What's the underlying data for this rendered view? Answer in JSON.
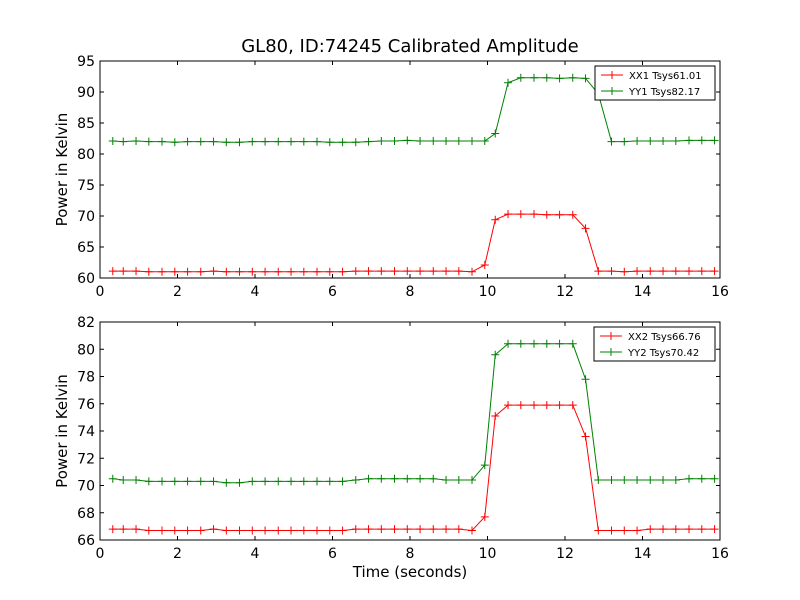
{
  "chart_data": [
    {
      "type": "line",
      "title": "GL80, ID:74245 Calibrated Amplitude",
      "xlabel": "",
      "ylabel": "Power in Kelvin",
      "xlim": [
        0,
        16
      ],
      "ylim": [
        60,
        95
      ],
      "xticks": [
        0,
        2,
        4,
        6,
        8,
        10,
        12,
        14,
        16
      ],
      "yticks": [
        60,
        65,
        70,
        75,
        80,
        85,
        90,
        95
      ],
      "legend": "top-right",
      "x": [
        0.33,
        0.6,
        0.93,
        1.26,
        1.6,
        1.93,
        2.26,
        2.6,
        2.93,
        3.26,
        3.6,
        3.93,
        4.26,
        4.6,
        4.93,
        5.26,
        5.6,
        5.93,
        6.26,
        6.6,
        6.93,
        7.26,
        7.6,
        7.93,
        8.26,
        8.6,
        8.93,
        9.26,
        9.6,
        9.93,
        10.2,
        10.53,
        10.86,
        11.2,
        11.53,
        11.86,
        12.2,
        12.53,
        12.86,
        13.2,
        13.53,
        13.86,
        14.2,
        14.53,
        14.86,
        15.2,
        15.53,
        15.86
      ],
      "series": [
        {
          "name": "XX1 Tsys61.01",
          "color": "#ff0000",
          "values": [
            61.1,
            61.1,
            61.1,
            61.0,
            61.0,
            61.0,
            61.0,
            61.0,
            61.1,
            61.0,
            61.0,
            61.0,
            61.0,
            61.0,
            61.0,
            61.0,
            61.0,
            61.0,
            61.0,
            61.1,
            61.1,
            61.1,
            61.1,
            61.1,
            61.1,
            61.1,
            61.1,
            61.1,
            61.0,
            62.1,
            69.4,
            70.3,
            70.3,
            70.3,
            70.2,
            70.2,
            70.2,
            68.0,
            61.1,
            61.1,
            61.0,
            61.1,
            61.1,
            61.1,
            61.1,
            61.1,
            61.1,
            61.1
          ]
        },
        {
          "name": "YY1 Tsys82.17",
          "color": "#008000",
          "values": [
            82.1,
            82.0,
            82.1,
            82.0,
            82.0,
            81.9,
            82.0,
            82.0,
            82.0,
            81.9,
            81.9,
            82.0,
            82.0,
            82.0,
            82.0,
            82.0,
            82.0,
            81.9,
            81.9,
            81.9,
            82.0,
            82.1,
            82.1,
            82.2,
            82.1,
            82.1,
            82.1,
            82.1,
            82.1,
            82.1,
            83.3,
            91.5,
            92.3,
            92.3,
            92.3,
            92.2,
            92.3,
            92.2,
            89.7,
            82.0,
            82.0,
            82.1,
            82.1,
            82.1,
            82.1,
            82.2,
            82.2,
            82.2
          ]
        }
      ]
    },
    {
      "type": "line",
      "title": "",
      "xlabel": "Time (seconds)",
      "ylabel": "Power in Kelvin",
      "xlim": [
        0,
        16
      ],
      "ylim": [
        66,
        82
      ],
      "xticks": [
        0,
        2,
        4,
        6,
        8,
        10,
        12,
        14,
        16
      ],
      "yticks": [
        66,
        68,
        70,
        72,
        74,
        76,
        78,
        80,
        82
      ],
      "legend": "top-right",
      "x": [
        0.33,
        0.6,
        0.93,
        1.26,
        1.6,
        1.93,
        2.26,
        2.6,
        2.93,
        3.26,
        3.6,
        3.93,
        4.26,
        4.6,
        4.93,
        5.26,
        5.6,
        5.93,
        6.26,
        6.6,
        6.93,
        7.26,
        7.6,
        7.93,
        8.26,
        8.6,
        8.93,
        9.26,
        9.6,
        9.93,
        10.2,
        10.53,
        10.86,
        11.2,
        11.53,
        11.86,
        12.2,
        12.53,
        12.86,
        13.2,
        13.53,
        13.86,
        14.2,
        14.53,
        14.86,
        15.2,
        15.53,
        15.86
      ],
      "series": [
        {
          "name": "XX2 Tsys66.76",
          "color": "#ff0000",
          "values": [
            66.8,
            66.8,
            66.8,
            66.7,
            66.7,
            66.7,
            66.7,
            66.7,
            66.8,
            66.7,
            66.7,
            66.7,
            66.7,
            66.7,
            66.7,
            66.7,
            66.7,
            66.7,
            66.7,
            66.8,
            66.8,
            66.8,
            66.8,
            66.8,
            66.8,
            66.8,
            66.8,
            66.8,
            66.7,
            67.7,
            75.1,
            75.9,
            75.9,
            75.9,
            75.9,
            75.9,
            75.9,
            73.6,
            66.7,
            66.7,
            66.7,
            66.7,
            66.8,
            66.8,
            66.8,
            66.8,
            66.8,
            66.8
          ]
        },
        {
          "name": "YY2 Tsys70.42",
          "color": "#008000",
          "values": [
            70.5,
            70.4,
            70.4,
            70.3,
            70.3,
            70.3,
            70.3,
            70.3,
            70.3,
            70.2,
            70.2,
            70.3,
            70.3,
            70.3,
            70.3,
            70.3,
            70.3,
            70.3,
            70.3,
            70.4,
            70.5,
            70.5,
            70.5,
            70.5,
            70.5,
            70.5,
            70.4,
            70.4,
            70.4,
            71.5,
            79.6,
            80.4,
            80.4,
            80.4,
            80.4,
            80.4,
            80.4,
            77.8,
            70.4,
            70.4,
            70.4,
            70.4,
            70.4,
            70.4,
            70.4,
            70.5,
            70.5,
            70.5
          ]
        }
      ]
    }
  ]
}
